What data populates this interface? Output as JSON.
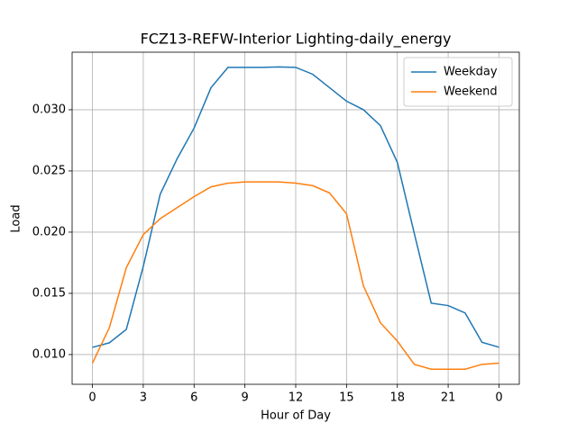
{
  "chart_data": {
    "type": "line",
    "title": "FCZ13-REFW-Interior Lighting-daily_energy",
    "xlabel": "Hour of Day",
    "ylabel": "Load",
    "x": [
      0,
      1,
      2,
      3,
      4,
      5,
      6,
      7,
      8,
      9,
      10,
      11,
      12,
      13,
      14,
      15,
      16,
      17,
      18,
      19,
      20,
      21,
      22,
      23,
      24
    ],
    "series": [
      {
        "name": "Weekday",
        "color": "#1f77b4",
        "values": [
          0.01059,
          0.01096,
          0.01206,
          0.0172,
          0.0231,
          0.026,
          0.0285,
          0.0318,
          0.03346,
          0.03346,
          0.03346,
          0.0335,
          0.03346,
          0.0329,
          0.0318,
          0.0307,
          0.03,
          0.0287,
          0.0257,
          0.0199,
          0.0142,
          0.014,
          0.0134,
          0.011,
          0.0106
        ]
      },
      {
        "name": "Weekend",
        "color": "#ff7f0e",
        "values": [
          0.0093,
          0.0122,
          0.0171,
          0.0198,
          0.0211,
          0.022,
          0.0229,
          0.0237,
          0.024,
          0.0241,
          0.0241,
          0.0241,
          0.024,
          0.0238,
          0.0232,
          0.0215,
          0.0156,
          0.0126,
          0.0111,
          0.0092,
          0.0088,
          0.0088,
          0.0088,
          0.0092,
          0.0093
        ]
      }
    ],
    "xlim": [
      -1.2,
      25.2
    ],
    "xticks": [
      0,
      3,
      6,
      9,
      12,
      15,
      18,
      21,
      {
        "value": 24,
        "label": "0"
      }
    ],
    "ylim": [
      0.00757,
      0.0347
    ],
    "yticks": [
      {
        "value": 0.01,
        "label": "0.010"
      },
      {
        "value": 0.015,
        "label": "0.015"
      },
      {
        "value": 0.02,
        "label": "0.020"
      },
      {
        "value": 0.025,
        "label": "0.025"
      },
      {
        "value": 0.03,
        "label": "0.030"
      }
    ],
    "grid": true,
    "legend": "upper right"
  }
}
